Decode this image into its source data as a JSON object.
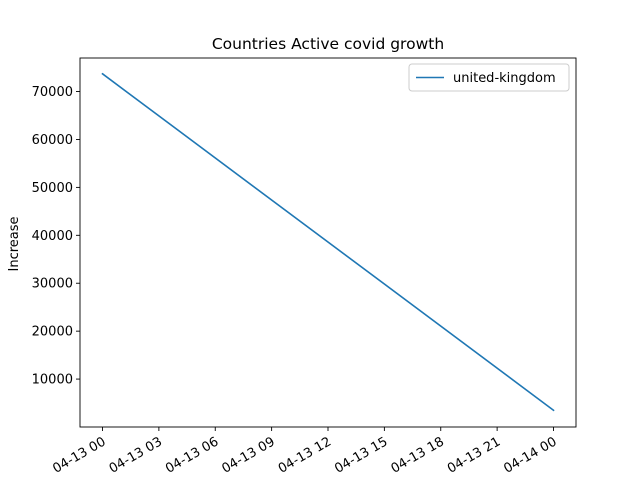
{
  "chart_data": {
    "type": "line",
    "title": "Countries Active covid growth",
    "xlabel": "",
    "ylabel": "Increase",
    "x_ticks": [
      "04-13 00",
      "04-13 03",
      "04-13 06",
      "04-13 09",
      "04-13 12",
      "04-13 15",
      "04-13 18",
      "04-13 21",
      "04-14 00"
    ],
    "x_range": [
      "04-13 00",
      "04-14 00"
    ],
    "y_ticks": [
      10000,
      20000,
      30000,
      40000,
      50000,
      60000,
      70000
    ],
    "y_tick_labels": [
      "10000",
      "20000",
      "30000",
      "40000",
      "50000",
      "60000",
      "70000"
    ],
    "ylim": [
      0,
      77000
    ],
    "x": [
      "04-13 00",
      "04-14 00"
    ],
    "series": [
      {
        "name": "united-kingdom",
        "color": "#1f77b4",
        "values": [
          73700,
          3500
        ]
      }
    ],
    "legend_position": "top-right",
    "grid": false
  }
}
